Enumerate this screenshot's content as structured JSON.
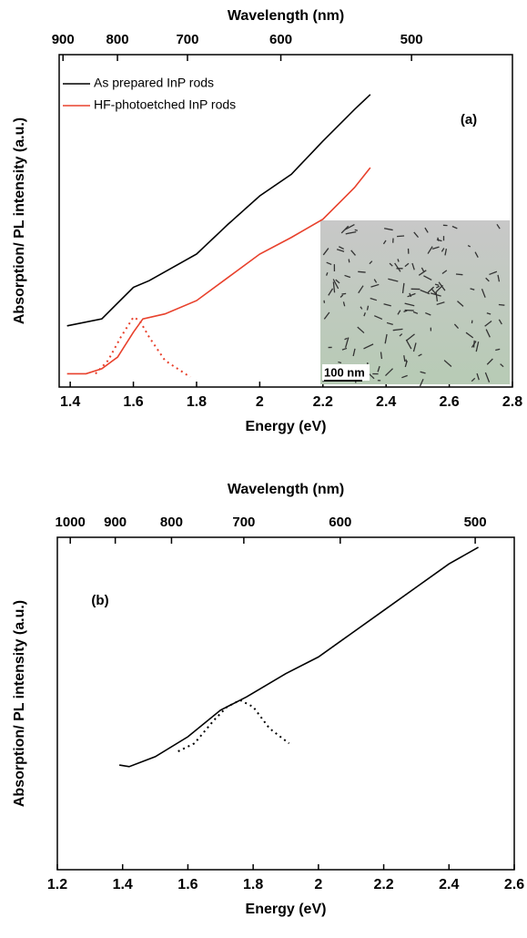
{
  "chart_data": [
    {
      "type": "line",
      "x_label": "Energy (eV)",
      "x2_label": "Wavelength (nm)",
      "y_label": "Absorption/ PL intensity (a.u.)",
      "annotation": "(a)",
      "inset_label": "100 nm",
      "xlim": [
        1.365,
        2.8
      ],
      "xticks": [
        1.4,
        1.6,
        1.8,
        2.0,
        2.2,
        2.4,
        2.6,
        2.8
      ],
      "x2scale": "reciprocal",
      "x2lim": [
        908,
        443
      ],
      "x2ticks": [
        900,
        800,
        700,
        600,
        500
      ],
      "ylim": [
        0,
        100
      ],
      "legend": "upper left",
      "grid": false,
      "series": [
        {
          "name": "As prepared InP rods",
          "color": "#000000",
          "dash": false,
          "x": [
            1.39,
            1.5,
            1.6,
            1.65,
            1.8,
            1.9,
            2.0,
            2.1,
            2.2,
            2.3,
            2.35
          ],
          "values": [
            18.4,
            20.5,
            30,
            32,
            40,
            49,
            57.5,
            64,
            74,
            83.5,
            88
          ]
        },
        {
          "name": "HF-photoetched InP rods",
          "color": "#e8412c",
          "dash": false,
          "x": [
            1.39,
            1.45,
            1.5,
            1.55,
            1.6,
            1.63,
            1.7,
            1.8,
            1.9,
            2.0,
            2.1,
            2.2,
            2.3,
            2.35
          ],
          "values": [
            4,
            4,
            5.5,
            9,
            16.5,
            20.5,
            22,
            26,
            33,
            40,
            45,
            50.5,
            60,
            66
          ]
        },
        {
          "color": "#e8412c",
          "dash": true,
          "x": [
            1.48,
            1.52,
            1.56,
            1.6,
            1.62,
            1.65,
            1.7,
            1.78
          ],
          "values": [
            4,
            8,
            15,
            21,
            20,
            15,
            8,
            3
          ]
        }
      ]
    },
    {
      "type": "line",
      "x_label": "Energy (eV)",
      "x2_label": "Wavelength (nm)",
      "y_label": "Absorption/ PL intensity (a.u.)",
      "annotation": "(b)",
      "xlim": [
        1.2,
        2.6
      ],
      "xticks": [
        1.2,
        1.4,
        1.6,
        1.8,
        2.0,
        2.2,
        2.4,
        2.6
      ],
      "x2scale": "reciprocal",
      "x2lim": [
        1033,
        477
      ],
      "x2ticks": [
        1000,
        900,
        800,
        700,
        600,
        500
      ],
      "ylim": [
        0,
        100
      ],
      "grid": false,
      "series": [
        {
          "color": "#000000",
          "dash": false,
          "x": [
            1.39,
            1.42,
            1.5,
            1.6,
            1.7,
            1.78,
            1.9,
            2.0,
            2.1,
            2.2,
            2.3,
            2.4,
            2.49
          ],
          "values": [
            31.5,
            31,
            34,
            40,
            48,
            52,
            59,
            64,
            71,
            78,
            85,
            92,
            97
          ]
        },
        {
          "color": "#000000",
          "dash": true,
          "x": [
            1.57,
            1.62,
            1.68,
            1.72,
            1.76,
            1.8,
            1.85,
            1.91
          ],
          "values": [
            35.6,
            38,
            45,
            49,
            51,
            49,
            42.5,
            38
          ]
        }
      ]
    }
  ]
}
